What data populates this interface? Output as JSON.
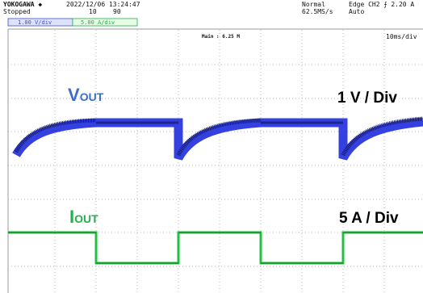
{
  "header": {
    "brand": "YOKOGAWA ◆",
    "status": "Stopped",
    "timestamp": "2022/12/06 13:24:47",
    "count_a": "10",
    "count_b": "90",
    "mode": "Normal",
    "sample_rate": "62.5MS/s",
    "trigger": "Edge CH2 ⨍ 2.20 A",
    "trigger_mode": "Auto"
  },
  "channels": {
    "ch1": "1.00 V/div",
    "ch2": "5.00 A/div"
  },
  "screen": {
    "main": "Main : 6.25 M",
    "timebase": "10ms/div"
  },
  "annotations": {
    "vout_main": "V",
    "vout_sub": "OUT",
    "vout_scale": "1 V / Div",
    "iout_main": "I",
    "iout_sub": "OUT",
    "iout_scale": "5 A / Div"
  }
}
